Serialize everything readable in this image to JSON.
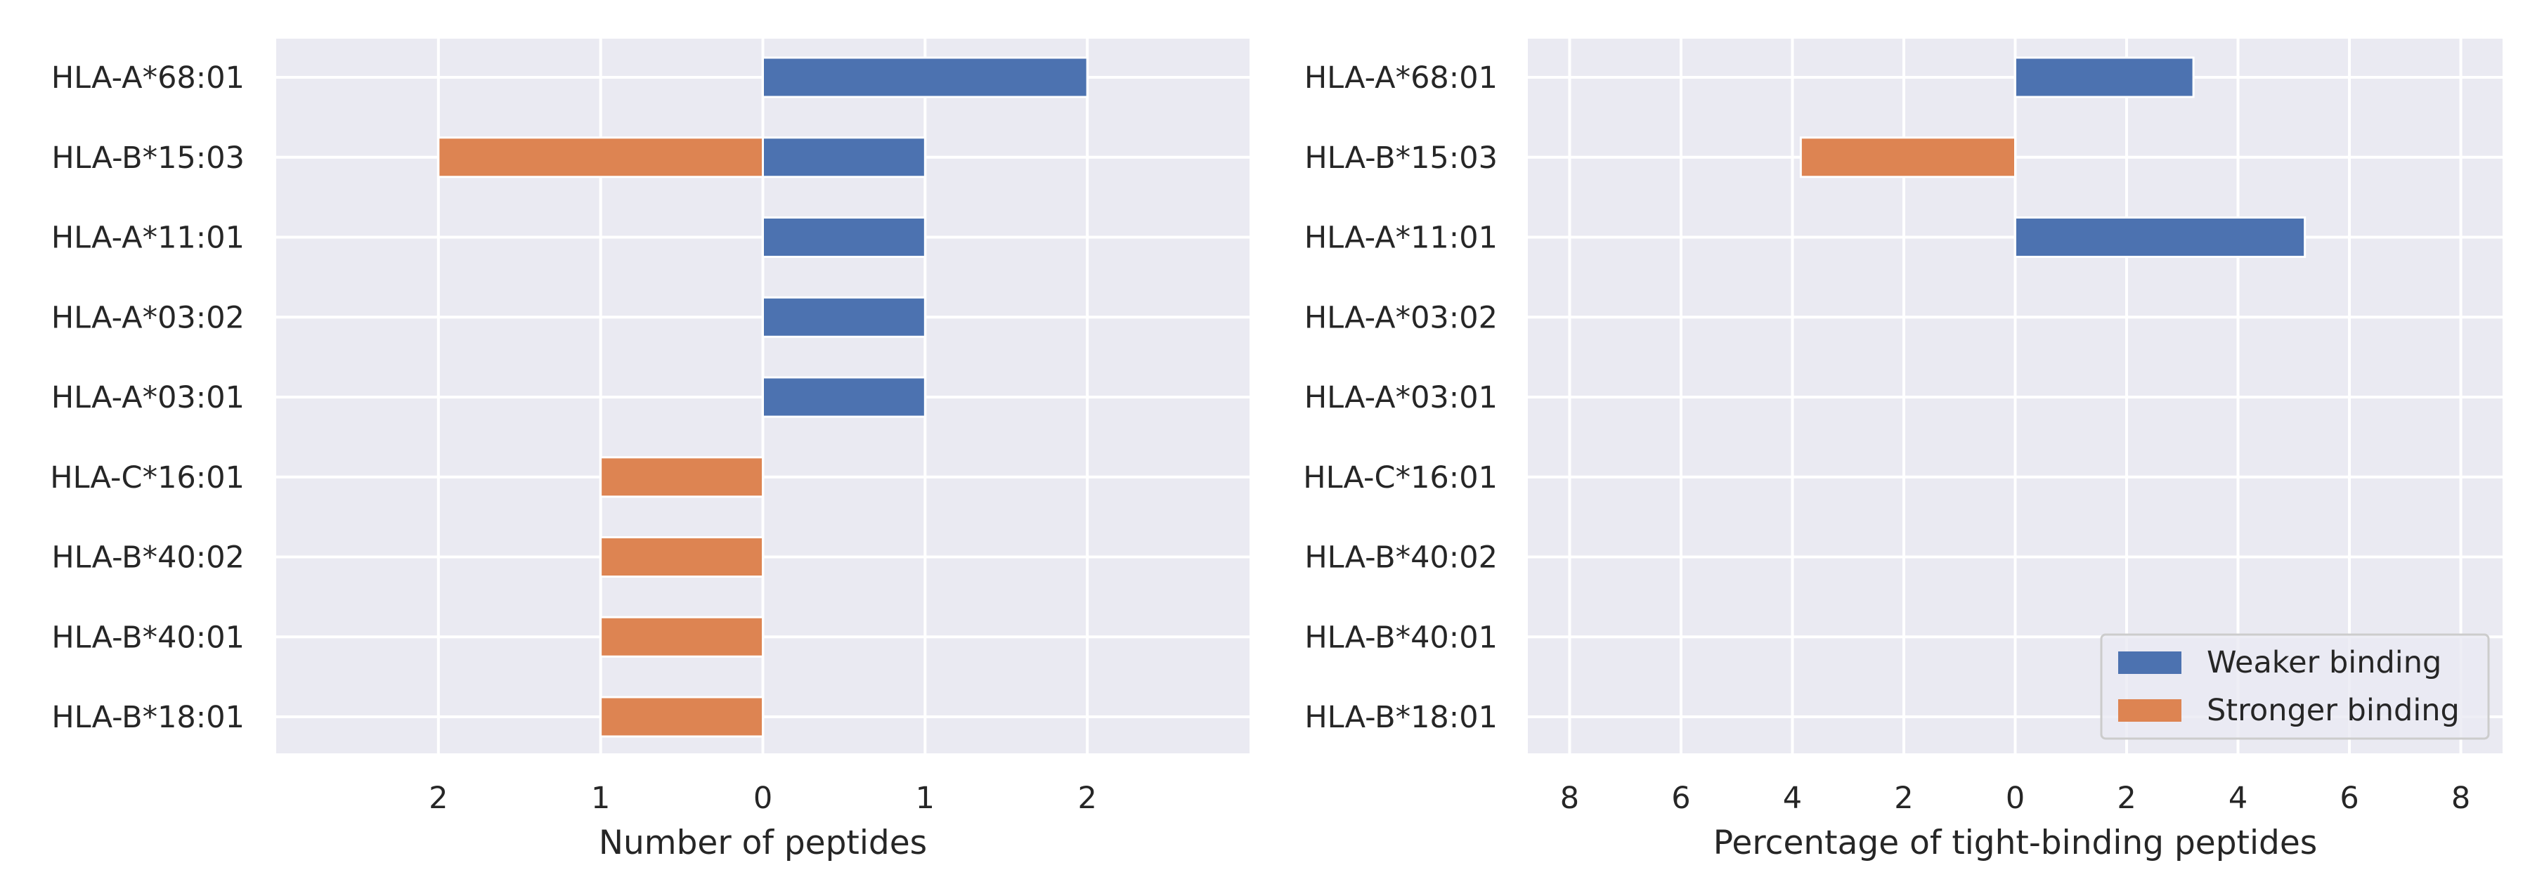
{
  "colors": {
    "weaker": "#4c72b0",
    "stronger": "#dd8452",
    "plot_bg": "#eaeaf2",
    "grid": "#ffffff",
    "text": "#262626"
  },
  "legend": {
    "placement": "lower-right",
    "items": [
      {
        "label": "Weaker binding",
        "color": "#4c72b0"
      },
      {
        "label": "Stronger binding",
        "color": "#dd8452"
      }
    ]
  },
  "chart_data": [
    {
      "type": "bar",
      "orientation": "horizontal",
      "xlabel": "Number of peptides",
      "ylabel": "",
      "xlim": [
        -3,
        3
      ],
      "xticks": [
        {
          "value": -2,
          "label": "2"
        },
        {
          "value": -1,
          "label": "1"
        },
        {
          "value": 0,
          "label": "0"
        },
        {
          "value": 1,
          "label": "1"
        },
        {
          "value": 2,
          "label": "2"
        }
      ],
      "grid": true,
      "categories": [
        "HLA-A*68:01",
        "HLA-B*15:03",
        "HLA-A*11:01",
        "HLA-A*03:02",
        "HLA-A*03:01",
        "HLA-C*16:01",
        "HLA-B*40:02",
        "HLA-B*40:01",
        "HLA-B*18:01"
      ],
      "series": [
        {
          "name": "Weaker binding",
          "direction": "right",
          "values": [
            2,
            1,
            1,
            1,
            1,
            0,
            0,
            0,
            0
          ]
        },
        {
          "name": "Stronger binding",
          "direction": "left",
          "values": [
            0,
            2,
            0,
            0,
            0,
            1,
            1,
            1,
            1
          ]
        }
      ]
    },
    {
      "type": "bar",
      "orientation": "horizontal",
      "xlabel": "Percentage of tight-binding peptides",
      "ylabel": "",
      "xlim": [
        -8.75,
        8.75
      ],
      "xticks": [
        {
          "value": -8,
          "label": "8"
        },
        {
          "value": -6,
          "label": "6"
        },
        {
          "value": -4,
          "label": "4"
        },
        {
          "value": -2,
          "label": "2"
        },
        {
          "value": 0,
          "label": "0"
        },
        {
          "value": 2,
          "label": "2"
        },
        {
          "value": 4,
          "label": "4"
        },
        {
          "value": 6,
          "label": "6"
        },
        {
          "value": 8,
          "label": "8"
        }
      ],
      "grid": true,
      "categories": [
        "HLA-A*68:01",
        "HLA-B*15:03",
        "HLA-A*11:01",
        "HLA-A*03:02",
        "HLA-A*03:01",
        "HLA-C*16:01",
        "HLA-B*40:02",
        "HLA-B*40:01",
        "HLA-B*18:01"
      ],
      "series": [
        {
          "name": "Weaker binding",
          "direction": "right",
          "values": [
            3.2,
            0,
            5.2,
            0,
            0,
            0,
            0,
            0,
            0
          ]
        },
        {
          "name": "Stronger binding",
          "direction": "left",
          "values": [
            0,
            3.85,
            0,
            0,
            0,
            0,
            0,
            0,
            0
          ]
        }
      ]
    }
  ]
}
